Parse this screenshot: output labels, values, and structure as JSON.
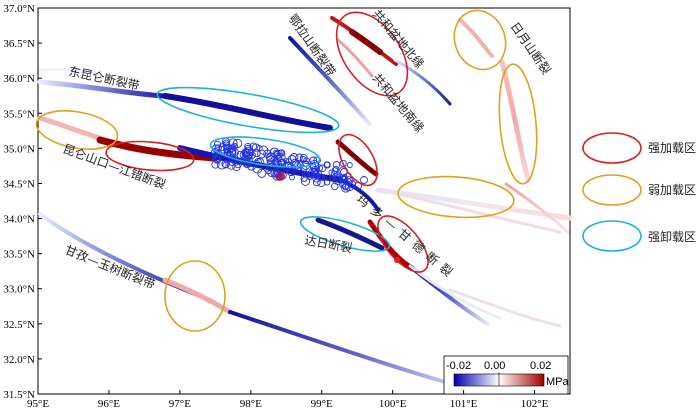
{
  "figure": {
    "x_ticks": [
      "95°E",
      "96°E",
      "97°E",
      "98°E",
      "99°E",
      "100°E",
      "101°E",
      "102°E"
    ],
    "y_ticks": [
      "37.0°N",
      "36.5°N",
      "36.0°N",
      "35.5°N",
      "35.0°N",
      "34.5°N",
      "34.0°N",
      "33.5°N",
      "33.0°N",
      "32.5°N",
      "32.0°N",
      "31.5°N"
    ],
    "x_range": [
      95,
      102.5
    ],
    "y_range": [
      31.5,
      37.0
    ]
  },
  "fault_labels": {
    "dongkunlun": "东昆仑断裂带",
    "kunlunshankou": "昆仑山口—江错断裂",
    "elashan": "鄂拉山断裂带",
    "gonghe_north": "共和盆地北缘",
    "gonghe_south": "共和盆地南缘",
    "riyueshan": "日月山断裂",
    "ganzi": "甘孜—玉树断裂带",
    "dari": "达日断裂",
    "maduo": "玛多—甘德断裂"
  },
  "legend": {
    "strong_loading": "强加载区",
    "weak_loading": "弱加载区",
    "strong_unloading": "强卸载区",
    "colors": {
      "strong_loading": "#d42020",
      "weak_loading": "#e0a020",
      "strong_unloading": "#20b0e0"
    }
  },
  "colorbar": {
    "min_label": "-0.02",
    "mid_label": "0.00",
    "max_label": "0.02",
    "unit": "MPa",
    "low_color": "#0000b0",
    "mid_color": "#ffffff",
    "high_color": "#a00000"
  }
}
